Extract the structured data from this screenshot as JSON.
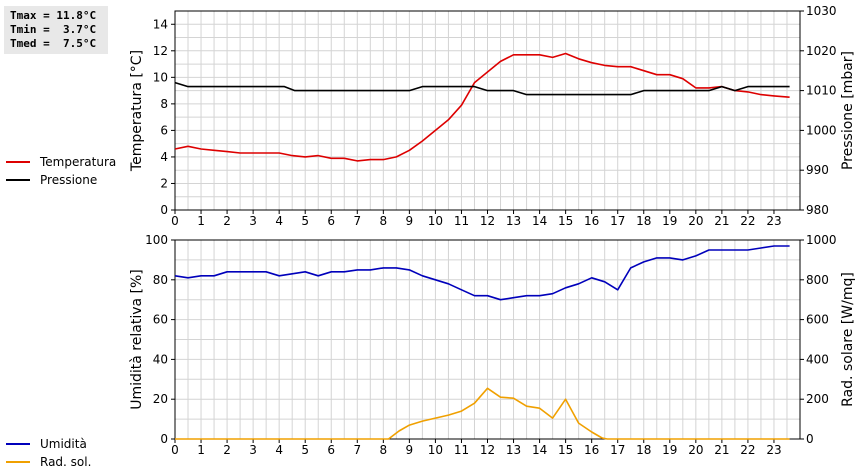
{
  "stats": {
    "tmax": "Tmax = 11.8°C",
    "tmin": "Tmin =  3.7°C",
    "tmed": "Tmed =  7.5°C"
  },
  "colors": {
    "temperature": "#dd0000",
    "pressure": "#000000",
    "humidity": "#0000bb",
    "radiation": "#f0a000",
    "grid": "#d4d4d4"
  },
  "chart_data": [
    {
      "type": "line",
      "ylabel": "Temperatura [°C]",
      "y2label": "Pressione [mbar]",
      "xlim": [
        0,
        24
      ],
      "ylim": [
        0,
        15
      ],
      "y2lim": [
        980,
        1030
      ],
      "x_ticks": [
        "0",
        "1",
        "2",
        "3",
        "4",
        "5",
        "6",
        "7",
        "8",
        "9",
        "10",
        "11",
        "12",
        "13",
        "14",
        "15",
        "16",
        "17",
        "18",
        "19",
        "20",
        "21",
        "22",
        "23"
      ],
      "y_ticks": [
        "0",
        "2",
        "4",
        "6",
        "8",
        "10",
        "12",
        "14"
      ],
      "y2_ticks": [
        "980",
        "990",
        "1000",
        "1010",
        "1020",
        "1030"
      ],
      "grid": true,
      "legend": [
        "Temperatura",
        "Pressione"
      ],
      "series": [
        {
          "name": "Temperatura",
          "axis": "left",
          "points": [
            [
              0,
              4.6
            ],
            [
              0.5,
              4.8
            ],
            [
              1,
              4.6
            ],
            [
              1.5,
              4.5
            ],
            [
              2,
              4.4
            ],
            [
              2.5,
              4.3
            ],
            [
              3,
              4.3
            ],
            [
              3.5,
              4.3
            ],
            [
              4,
              4.3
            ],
            [
              4.5,
              4.1
            ],
            [
              5,
              4.0
            ],
            [
              5.5,
              4.1
            ],
            [
              6,
              3.9
            ],
            [
              6.5,
              3.9
            ],
            [
              7,
              3.7
            ],
            [
              7.5,
              3.8
            ],
            [
              8,
              3.8
            ],
            [
              8.5,
              4.0
            ],
            [
              9,
              4.5
            ],
            [
              9.5,
              5.2
            ],
            [
              10,
              6.0
            ],
            [
              10.5,
              6.8
            ],
            [
              11,
              7.9
            ],
            [
              11.5,
              9.6
            ],
            [
              12,
              10.4
            ],
            [
              12.5,
              11.2
            ],
            [
              13,
              11.7
            ],
            [
              13.5,
              11.7
            ],
            [
              14,
              11.7
            ],
            [
              14.5,
              11.5
            ],
            [
              15,
              11.8
            ],
            [
              15.5,
              11.4
            ],
            [
              16,
              11.1
            ],
            [
              16.5,
              10.9
            ],
            [
              17,
              10.8
            ],
            [
              17.5,
              10.8
            ],
            [
              18,
              10.5
            ],
            [
              18.5,
              10.2
            ],
            [
              19,
              10.2
            ],
            [
              19.5,
              9.9
            ],
            [
              20,
              9.2
            ],
            [
              20.5,
              9.2
            ],
            [
              21,
              9.3
            ],
            [
              21.5,
              9.0
            ],
            [
              22,
              8.9
            ],
            [
              22.5,
              8.7
            ],
            [
              23,
              8.6
            ],
            [
              23.6,
              8.5
            ]
          ]
        },
        {
          "name": "Pressione",
          "axis": "right",
          "points": [
            [
              0,
              1012.0
            ],
            [
              0.5,
              1011.0
            ],
            [
              4.2,
              1011.0
            ],
            [
              4.6,
              1010.0
            ],
            [
              9.0,
              1010.0
            ],
            [
              9.5,
              1011.0
            ],
            [
              11.5,
              1011.0
            ],
            [
              12.0,
              1010.0
            ],
            [
              13.0,
              1010.0
            ],
            [
              13.5,
              1009.0
            ],
            [
              17.5,
              1009.0
            ],
            [
              18.0,
              1010.0
            ],
            [
              20.5,
              1010.0
            ],
            [
              21.0,
              1011.0
            ],
            [
              21.5,
              1010.0
            ],
            [
              22.0,
              1011.0
            ],
            [
              23.6,
              1011.0
            ]
          ]
        }
      ]
    },
    {
      "type": "line",
      "ylabel": "Umidità relativa [%]",
      "y2label": "Rad. solare [W/mq]",
      "xlim": [
        0,
        24
      ],
      "ylim": [
        0,
        100
      ],
      "y2lim": [
        0,
        1000
      ],
      "x_ticks": [
        "0",
        "1",
        "2",
        "3",
        "4",
        "5",
        "6",
        "7",
        "8",
        "9",
        "10",
        "11",
        "12",
        "13",
        "14",
        "15",
        "16",
        "17",
        "18",
        "19",
        "20",
        "21",
        "22",
        "23"
      ],
      "y_ticks": [
        "0",
        "20",
        "40",
        "60",
        "80",
        "100"
      ],
      "y2_ticks": [
        "0",
        "200",
        "400",
        "600",
        "800",
        "1000"
      ],
      "grid": true,
      "legend": [
        "Umidità",
        "Rad. sol."
      ],
      "series": [
        {
          "name": "Umidità",
          "axis": "left",
          "points": [
            [
              0,
              82
            ],
            [
              0.5,
              81
            ],
            [
              1,
              82
            ],
            [
              1.5,
              82
            ],
            [
              2,
              84
            ],
            [
              2.5,
              84
            ],
            [
              3,
              84
            ],
            [
              3.5,
              84
            ],
            [
              4,
              82
            ],
            [
              4.5,
              83
            ],
            [
              5,
              84
            ],
            [
              5.5,
              82
            ],
            [
              6,
              84
            ],
            [
              6.5,
              84
            ],
            [
              7,
              85
            ],
            [
              7.5,
              85
            ],
            [
              8,
              86
            ],
            [
              8.5,
              86
            ],
            [
              9,
              85
            ],
            [
              9.5,
              82
            ],
            [
              10,
              80
            ],
            [
              10.5,
              78
            ],
            [
              11,
              75
            ],
            [
              11.5,
              72
            ],
            [
              12,
              72
            ],
            [
              12.5,
              70
            ],
            [
              13,
              71
            ],
            [
              13.5,
              72
            ],
            [
              14,
              72
            ],
            [
              14.5,
              73
            ],
            [
              15,
              76
            ],
            [
              15.5,
              78
            ],
            [
              16,
              81
            ],
            [
              16.5,
              79
            ],
            [
              17,
              75
            ],
            [
              17.5,
              86
            ],
            [
              18,
              89
            ],
            [
              18.5,
              91
            ],
            [
              19,
              91
            ],
            [
              19.5,
              90
            ],
            [
              20,
              92
            ],
            [
              20.5,
              95
            ],
            [
              21,
              95
            ],
            [
              21.5,
              95
            ],
            [
              22,
              95
            ],
            [
              22.5,
              96
            ],
            [
              23,
              97
            ],
            [
              23.6,
              97
            ]
          ]
        },
        {
          "name": "Rad. sol.",
          "axis": "right",
          "points": [
            [
              0,
              0
            ],
            [
              8.2,
              0
            ],
            [
              8.6,
              40
            ],
            [
              9,
              70
            ],
            [
              9.5,
              90
            ],
            [
              10,
              105
            ],
            [
              10.5,
              120
            ],
            [
              11,
              140
            ],
            [
              11.5,
              180
            ],
            [
              12,
              255
            ],
            [
              12.5,
              210
            ],
            [
              13,
              205
            ],
            [
              13.5,
              165
            ],
            [
              14,
              155
            ],
            [
              14.5,
              105
            ],
            [
              15,
              200
            ],
            [
              15.5,
              80
            ],
            [
              16,
              35
            ],
            [
              16.4,
              5
            ],
            [
              16.6,
              0
            ],
            [
              23.6,
              0
            ]
          ]
        }
      ]
    }
  ]
}
